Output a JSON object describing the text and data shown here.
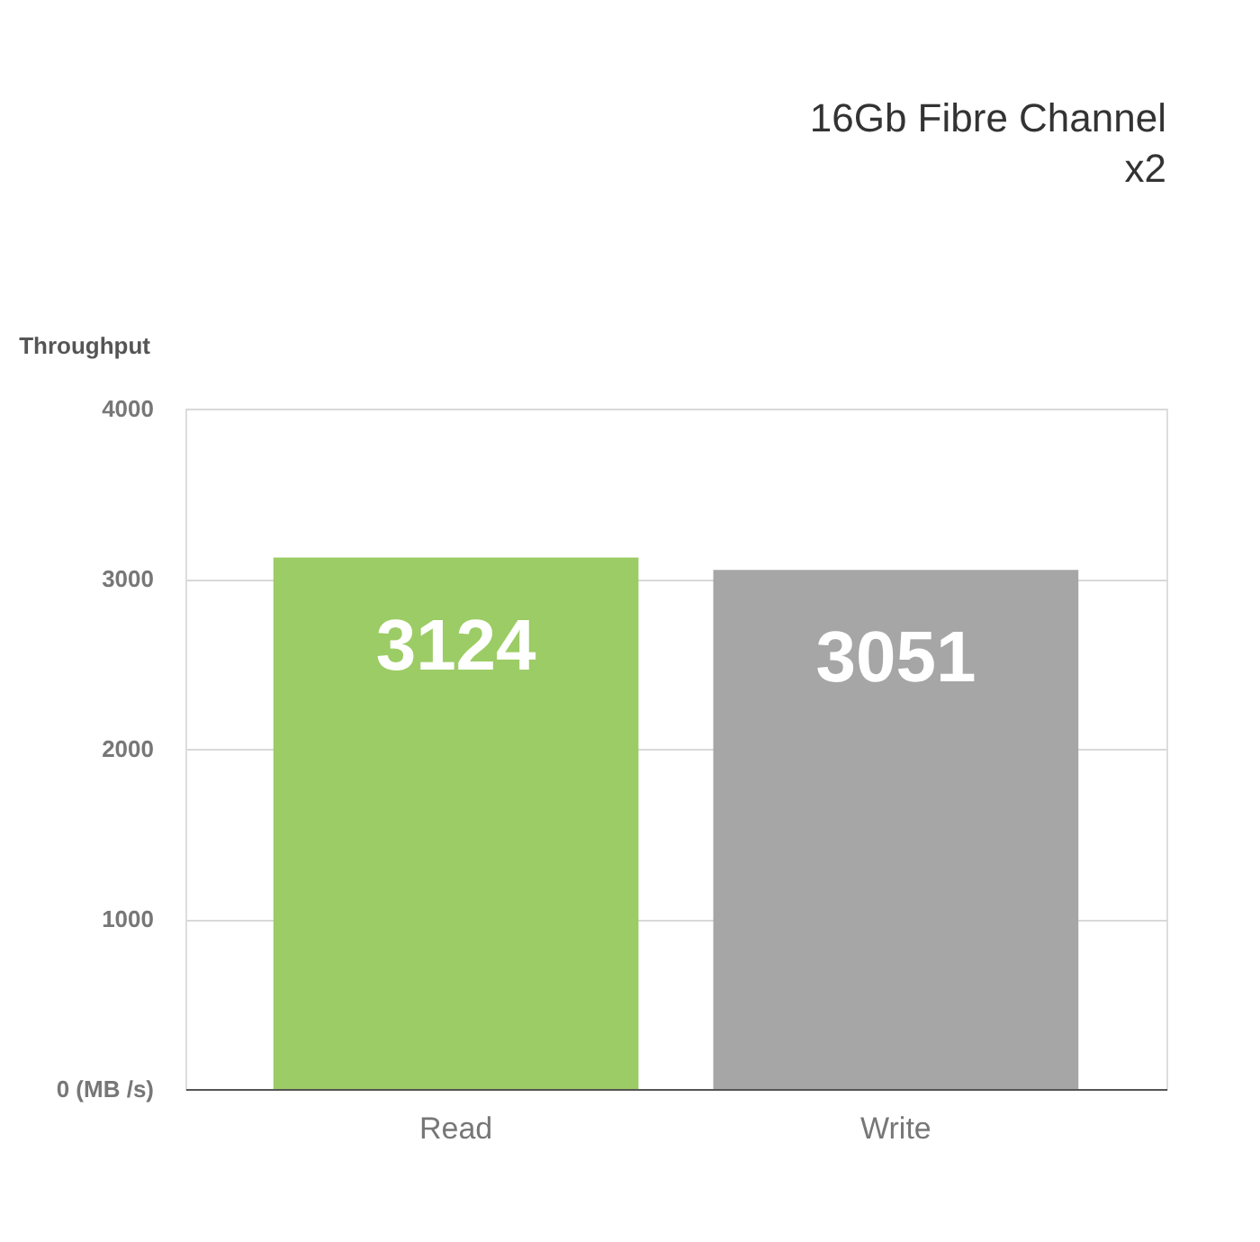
{
  "chart_data": {
    "type": "bar",
    "title": "16Gb Fibre Channel x2",
    "ylabel": "Throughput",
    "categories": [
      "Read",
      "Write"
    ],
    "values": [
      3124,
      3051
    ],
    "colors": [
      "#9ccc65",
      "#a6a6a6"
    ],
    "ylim": [
      0,
      4000
    ],
    "yticks": [
      {
        "value": 0,
        "label": "0 (MB /s)"
      },
      1000,
      2000,
      3000,
      4000
    ],
    "grid": "y",
    "data_labels": true
  }
}
